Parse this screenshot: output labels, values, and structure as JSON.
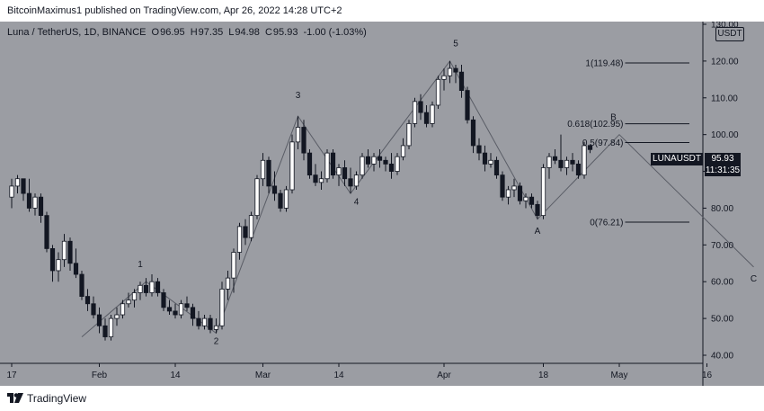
{
  "header": {
    "credit": "BitcoinMaximus1 published on TradingView.com, Apr 26, 2022 14:28 UTC+2"
  },
  "legend": {
    "symbol": "Luna / TetherUS, 1D, BINANCE",
    "open_label": "O",
    "open": "96.95",
    "high_label": "H",
    "high": "97.35",
    "low_label": "L",
    "low": "94.98",
    "close_label": "C",
    "close": "95.93",
    "change": "-1.00 (-1.03%)"
  },
  "currency_badge": "USDT",
  "price_label": {
    "ticker": "LUNAUSDT",
    "price": "95.93",
    "countdown": "11:31:35"
  },
  "footer": {
    "brand": "TradingView"
  },
  "colors": {
    "background": "#9b9da3",
    "up_candle": "#ffffff",
    "down_candle": "#131722",
    "wave_line": "#5a5d66",
    "text": "#131722"
  },
  "chart_data": {
    "type": "candlestick",
    "title": "",
    "xlabel": "",
    "ylabel": "",
    "y_axis_side": "right",
    "ylim": [
      40,
      130
    ],
    "y_ticks": [
      "40.00",
      "50.00",
      "60.00",
      "70.00",
      "80.00",
      "90.00",
      "100.00",
      "110.00",
      "120.00",
      "130.00"
    ],
    "x_ticks": [
      {
        "label": "17",
        "date": "2022-01-17"
      },
      {
        "label": "Feb",
        "date": "2022-02-01"
      },
      {
        "label": "14",
        "date": "2022-02-14"
      },
      {
        "label": "Mar",
        "date": "2022-03-01"
      },
      {
        "label": "14",
        "date": "2022-03-14"
      },
      {
        "label": "Apr",
        "date": "2022-04-01"
      },
      {
        "label": "18",
        "date": "2022-04-18"
      },
      {
        "label": "May",
        "date": "2022-05-01"
      },
      {
        "label": "16",
        "date": "2022-05-16"
      }
    ],
    "candles": [
      {
        "d": "2022-01-17",
        "o": 83,
        "h": 88,
        "l": 80,
        "c": 86
      },
      {
        "d": "2022-01-18",
        "o": 86,
        "h": 89,
        "l": 84,
        "c": 88
      },
      {
        "d": "2022-01-19",
        "o": 88,
        "h": 88,
        "l": 82,
        "c": 84
      },
      {
        "d": "2022-01-20",
        "o": 84,
        "h": 88,
        "l": 79,
        "c": 80
      },
      {
        "d": "2022-01-21",
        "o": 80,
        "h": 84,
        "l": 78,
        "c": 83
      },
      {
        "d": "2022-01-22",
        "o": 83,
        "h": 84,
        "l": 76,
        "c": 78
      },
      {
        "d": "2022-01-23",
        "o": 78,
        "h": 79,
        "l": 68,
        "c": 69
      },
      {
        "d": "2022-01-24",
        "o": 69,
        "h": 70,
        "l": 60,
        "c": 63
      },
      {
        "d": "2022-01-25",
        "o": 63,
        "h": 68,
        "l": 60,
        "c": 66
      },
      {
        "d": "2022-01-26",
        "o": 66,
        "h": 73,
        "l": 64,
        "c": 71
      },
      {
        "d": "2022-01-27",
        "o": 71,
        "h": 72,
        "l": 63,
        "c": 65
      },
      {
        "d": "2022-01-28",
        "o": 65,
        "h": 69,
        "l": 61,
        "c": 62
      },
      {
        "d": "2022-01-29",
        "o": 62,
        "h": 63,
        "l": 55,
        "c": 56
      },
      {
        "d": "2022-01-30",
        "o": 56,
        "h": 58,
        "l": 52,
        "c": 54
      },
      {
        "d": "2022-01-31",
        "o": 54,
        "h": 56,
        "l": 50,
        "c": 51
      },
      {
        "d": "2022-02-01",
        "o": 51,
        "h": 53,
        "l": 46,
        "c": 48
      },
      {
        "d": "2022-02-02",
        "o": 48,
        "h": 50,
        "l": 44,
        "c": 45
      },
      {
        "d": "2022-02-03",
        "o": 45,
        "h": 51,
        "l": 44,
        "c": 50
      },
      {
        "d": "2022-02-04",
        "o": 50,
        "h": 53,
        "l": 48,
        "c": 51
      },
      {
        "d": "2022-02-05",
        "o": 51,
        "h": 55,
        "l": 50,
        "c": 54
      },
      {
        "d": "2022-02-06",
        "o": 54,
        "h": 57,
        "l": 53,
        "c": 55
      },
      {
        "d": "2022-02-07",
        "o": 55,
        "h": 58,
        "l": 53,
        "c": 57
      },
      {
        "d": "2022-02-08",
        "o": 57,
        "h": 60,
        "l": 55,
        "c": 59
      },
      {
        "d": "2022-02-09",
        "o": 59,
        "h": 61,
        "l": 56,
        "c": 57
      },
      {
        "d": "2022-02-10",
        "o": 57,
        "h": 62,
        "l": 56,
        "c": 60
      },
      {
        "d": "2022-02-11",
        "o": 60,
        "h": 61,
        "l": 56,
        "c": 57
      },
      {
        "d": "2022-02-12",
        "o": 57,
        "h": 58,
        "l": 52,
        "c": 53
      },
      {
        "d": "2022-02-13",
        "o": 53,
        "h": 55,
        "l": 51,
        "c": 52
      },
      {
        "d": "2022-02-14",
        "o": 52,
        "h": 54,
        "l": 50,
        "c": 51
      },
      {
        "d": "2022-02-15",
        "o": 51,
        "h": 55,
        "l": 50,
        "c": 54
      },
      {
        "d": "2022-02-16",
        "o": 54,
        "h": 56,
        "l": 52,
        "c": 53
      },
      {
        "d": "2022-02-17",
        "o": 53,
        "h": 54,
        "l": 48,
        "c": 50
      },
      {
        "d": "2022-02-18",
        "o": 50,
        "h": 52,
        "l": 47,
        "c": 48
      },
      {
        "d": "2022-02-19",
        "o": 48,
        "h": 51,
        "l": 47,
        "c": 50
      },
      {
        "d": "2022-02-20",
        "o": 50,
        "h": 51,
        "l": 46,
        "c": 47
      },
      {
        "d": "2022-02-21",
        "o": 47,
        "h": 50,
        "l": 46,
        "c": 48
      },
      {
        "d": "2022-02-22",
        "o": 48,
        "h": 60,
        "l": 47,
        "c": 58
      },
      {
        "d": "2022-02-23",
        "o": 58,
        "h": 63,
        "l": 55,
        "c": 61
      },
      {
        "d": "2022-02-24",
        "o": 61,
        "h": 69,
        "l": 57,
        "c": 68
      },
      {
        "d": "2022-02-25",
        "o": 68,
        "h": 76,
        "l": 66,
        "c": 75
      },
      {
        "d": "2022-02-26",
        "o": 75,
        "h": 77,
        "l": 70,
        "c": 72
      },
      {
        "d": "2022-02-27",
        "o": 72,
        "h": 79,
        "l": 71,
        "c": 78
      },
      {
        "d": "2022-02-28",
        "o": 78,
        "h": 89,
        "l": 77,
        "c": 88
      },
      {
        "d": "2022-03-01",
        "o": 88,
        "h": 95,
        "l": 86,
        "c": 93
      },
      {
        "d": "2022-03-02",
        "o": 93,
        "h": 94,
        "l": 84,
        "c": 86
      },
      {
        "d": "2022-03-03",
        "o": 86,
        "h": 90,
        "l": 82,
        "c": 84
      },
      {
        "d": "2022-03-04",
        "o": 84,
        "h": 85,
        "l": 79,
        "c": 80
      },
      {
        "d": "2022-03-05",
        "o": 80,
        "h": 86,
        "l": 79,
        "c": 85
      },
      {
        "d": "2022-03-06",
        "o": 85,
        "h": 100,
        "l": 84,
        "c": 98
      },
      {
        "d": "2022-03-07",
        "o": 98,
        "h": 105,
        "l": 96,
        "c": 102
      },
      {
        "d": "2022-03-08",
        "o": 102,
        "h": 104,
        "l": 93,
        "c": 95
      },
      {
        "d": "2022-03-09",
        "o": 95,
        "h": 96,
        "l": 88,
        "c": 89
      },
      {
        "d": "2022-03-10",
        "o": 89,
        "h": 92,
        "l": 86,
        "c": 87
      },
      {
        "d": "2022-03-11",
        "o": 87,
        "h": 90,
        "l": 85,
        "c": 88
      },
      {
        "d": "2022-03-12",
        "o": 88,
        "h": 96,
        "l": 87,
        "c": 95
      },
      {
        "d": "2022-03-13",
        "o": 95,
        "h": 96,
        "l": 88,
        "c": 89
      },
      {
        "d": "2022-03-14",
        "o": 89,
        "h": 92,
        "l": 86,
        "c": 91
      },
      {
        "d": "2022-03-15",
        "o": 91,
        "h": 93,
        "l": 86,
        "c": 88
      },
      {
        "d": "2022-03-16",
        "o": 88,
        "h": 91,
        "l": 84,
        "c": 86
      },
      {
        "d": "2022-03-17",
        "o": 86,
        "h": 90,
        "l": 85,
        "c": 89
      },
      {
        "d": "2022-03-18",
        "o": 89,
        "h": 95,
        "l": 88,
        "c": 94
      },
      {
        "d": "2022-03-19",
        "o": 94,
        "h": 96,
        "l": 91,
        "c": 92
      },
      {
        "d": "2022-03-20",
        "o": 92,
        "h": 95,
        "l": 90,
        "c": 94
      },
      {
        "d": "2022-03-21",
        "o": 94,
        "h": 96,
        "l": 91,
        "c": 93
      },
      {
        "d": "2022-03-22",
        "o": 93,
        "h": 94,
        "l": 90,
        "c": 92
      },
      {
        "d": "2022-03-23",
        "o": 92,
        "h": 95,
        "l": 88,
        "c": 90
      },
      {
        "d": "2022-03-24",
        "o": 90,
        "h": 95,
        "l": 89,
        "c": 94
      },
      {
        "d": "2022-03-25",
        "o": 94,
        "h": 99,
        "l": 93,
        "c": 97
      },
      {
        "d": "2022-03-26",
        "o": 97,
        "h": 104,
        "l": 96,
        "c": 103
      },
      {
        "d": "2022-03-27",
        "o": 103,
        "h": 110,
        "l": 102,
        "c": 109
      },
      {
        "d": "2022-03-28",
        "o": 109,
        "h": 111,
        "l": 104,
        "c": 106
      },
      {
        "d": "2022-03-29",
        "o": 106,
        "h": 108,
        "l": 102,
        "c": 103
      },
      {
        "d": "2022-03-30",
        "o": 103,
        "h": 109,
        "l": 102,
        "c": 108
      },
      {
        "d": "2022-03-31",
        "o": 108,
        "h": 116,
        "l": 107,
        "c": 115
      },
      {
        "d": "2022-04-01",
        "o": 115,
        "h": 118,
        "l": 112,
        "c": 116
      },
      {
        "d": "2022-04-02",
        "o": 116,
        "h": 120,
        "l": 114,
        "c": 118
      },
      {
        "d": "2022-04-03",
        "o": 118,
        "h": 119,
        "l": 114,
        "c": 117
      },
      {
        "d": "2022-04-04",
        "o": 117,
        "h": 119,
        "l": 110,
        "c": 112
      },
      {
        "d": "2022-04-05",
        "o": 112,
        "h": 113,
        "l": 103,
        "c": 104
      },
      {
        "d": "2022-04-06",
        "o": 104,
        "h": 105,
        "l": 95,
        "c": 97
      },
      {
        "d": "2022-04-07",
        "o": 97,
        "h": 99,
        "l": 93,
        "c": 95
      },
      {
        "d": "2022-04-08",
        "o": 95,
        "h": 97,
        "l": 90,
        "c": 92
      },
      {
        "d": "2022-04-09",
        "o": 92,
        "h": 95,
        "l": 91,
        "c": 93
      },
      {
        "d": "2022-04-10",
        "o": 93,
        "h": 94,
        "l": 88,
        "c": 89
      },
      {
        "d": "2022-04-11",
        "o": 89,
        "h": 90,
        "l": 82,
        "c": 83
      },
      {
        "d": "2022-04-12",
        "o": 83,
        "h": 86,
        "l": 81,
        "c": 85
      },
      {
        "d": "2022-04-13",
        "o": 85,
        "h": 88,
        "l": 83,
        "c": 86
      },
      {
        "d": "2022-04-14",
        "o": 86,
        "h": 87,
        "l": 81,
        "c": 82
      },
      {
        "d": "2022-04-15",
        "o": 82,
        "h": 84,
        "l": 80,
        "c": 83
      },
      {
        "d": "2022-04-16",
        "o": 83,
        "h": 84,
        "l": 80,
        "c": 81
      },
      {
        "d": "2022-04-17",
        "o": 81,
        "h": 82,
        "l": 77,
        "c": 78
      },
      {
        "d": "2022-04-18",
        "o": 78,
        "h": 92,
        "l": 77,
        "c": 91
      },
      {
        "d": "2022-04-19",
        "o": 91,
        "h": 95,
        "l": 88,
        "c": 94
      },
      {
        "d": "2022-04-20",
        "o": 94,
        "h": 96,
        "l": 92,
        "c": 93
      },
      {
        "d": "2022-04-21",
        "o": 93,
        "h": 100,
        "l": 90,
        "c": 91
      },
      {
        "d": "2022-04-22",
        "o": 91,
        "h": 94,
        "l": 89,
        "c": 93
      },
      {
        "d": "2022-04-23",
        "o": 93,
        "h": 95,
        "l": 90,
        "c": 92
      },
      {
        "d": "2022-04-24",
        "o": 92,
        "h": 93,
        "l": 88,
        "c": 89
      },
      {
        "d": "2022-04-25",
        "o": 89,
        "h": 98,
        "l": 88,
        "c": 97
      },
      {
        "d": "2022-04-26",
        "o": 96.95,
        "h": 97.35,
        "l": 94.98,
        "c": 95.93
      }
    ],
    "wave_path": [
      {
        "d": "2022-01-29",
        "y": 45
      },
      {
        "d": "2022-02-09",
        "y": 60
      },
      {
        "d": "2022-02-21",
        "y": 46
      },
      {
        "d": "2022-03-07",
        "y": 105
      },
      {
        "d": "2022-03-16",
        "y": 84
      },
      {
        "d": "2022-04-02",
        "y": 120
      },
      {
        "d": "2022-04-17",
        "y": 77
      },
      {
        "d": "2022-05-01",
        "y": 100
      },
      {
        "d": "2022-05-24",
        "y": 64
      }
    ],
    "wave_labels": [
      {
        "text": "1",
        "d": "2022-02-08",
        "y": 64
      },
      {
        "text": "2",
        "d": "2022-02-21",
        "y": 43
      },
      {
        "text": "3",
        "d": "2022-03-07",
        "y": 110
      },
      {
        "text": "4",
        "d": "2022-03-17",
        "y": 81
      },
      {
        "text": "5",
        "d": "2022-04-03",
        "y": 124
      },
      {
        "text": "A",
        "d": "2022-04-17",
        "y": 73
      },
      {
        "text": "B",
        "d": "2022-04-30",
        "y": 104
      },
      {
        "text": "C",
        "d": "2022-05-24",
        "y": 60
      }
    ],
    "fib_levels": [
      {
        "label": "1(119.48)",
        "value": 119.48
      },
      {
        "label": "0.618(102.95)",
        "value": 102.95
      },
      {
        "label": "0.5(97.84)",
        "value": 97.84
      },
      {
        "label": "0(76.21)",
        "value": 76.21
      }
    ],
    "fib_range": {
      "start": "2022-05-02",
      "end": "2022-05-13"
    }
  }
}
